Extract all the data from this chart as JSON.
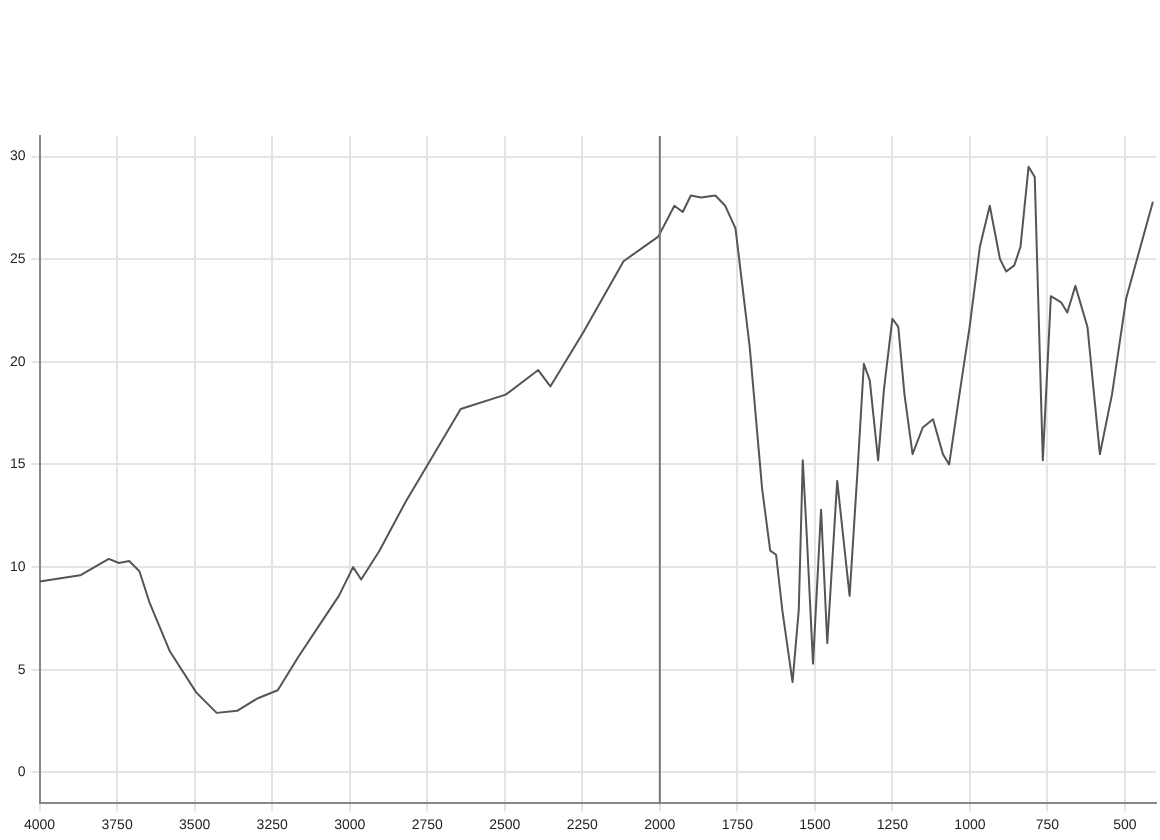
{
  "chart_data": {
    "type": "line",
    "color": "#555555",
    "marker": "none",
    "line_style": "solid",
    "grid": true,
    "legend": false,
    "x": [
      4000,
      3869,
      3777,
      3744,
      3711,
      3678,
      3646,
      3580,
      3495,
      3429,
      3363,
      3298,
      3232,
      3167,
      3101,
      3035,
      2989,
      2963,
      2904,
      2819,
      2642,
      2497,
      2392,
      2353,
      2248,
      2117,
      2005,
      1953,
      1926,
      1900,
      1867,
      1821,
      1789,
      1756,
      1710,
      1670,
      1644,
      1625,
      1605,
      1572,
      1552,
      1539,
      1526,
      1506,
      1480,
      1460,
      1428,
      1388,
      1362,
      1342,
      1323,
      1296,
      1277,
      1250,
      1231,
      1211,
      1185,
      1152,
      1119,
      1087,
      1067,
      1034,
      1001,
      968,
      936,
      903,
      883,
      857,
      837,
      811,
      791,
      765,
      739,
      706,
      686,
      660,
      621,
      581,
      542,
      496,
      410
    ],
    "values": [
      9.3,
      9.6,
      10.4,
      10.2,
      10.3,
      9.8,
      8.3,
      5.9,
      3.9,
      2.9,
      3.0,
      3.6,
      4.0,
      5.6,
      7.1,
      8.6,
      10.0,
      9.4,
      10.8,
      13.2,
      17.7,
      18.4,
      19.6,
      18.8,
      21.4,
      24.9,
      26.1,
      27.6,
      27.3,
      28.1,
      28.0,
      28.1,
      27.6,
      26.5,
      20.7,
      13.8,
      10.8,
      10.6,
      7.9,
      4.4,
      7.9,
      15.2,
      11.5,
      5.3,
      12.8,
      6.3,
      14.2,
      8.6,
      14.8,
      19.9,
      19.1,
      15.2,
      18.7,
      22.1,
      21.7,
      18.4,
      15.5,
      16.8,
      17.2,
      15.5,
      15.0,
      18.4,
      21.7,
      25.6,
      27.6,
      25.0,
      24.4,
      24.7,
      25.6,
      29.5,
      29.0,
      15.2,
      23.2,
      22.9,
      22.4,
      23.7,
      21.7,
      15.5,
      18.4,
      23.1,
      27.8
    ],
    "xlim": [
      4000,
      400
    ],
    "xticks": [
      4000,
      3750,
      3500,
      3250,
      3000,
      2750,
      2500,
      2250,
      2000,
      1750,
      1500,
      1250,
      1000,
      750,
      500
    ],
    "ylim": [
      -1.5,
      31
    ],
    "yticks": [
      0,
      5,
      10,
      15,
      20,
      25,
      30
    ],
    "ref_lines": [
      {
        "axis": "x",
        "value": 2000,
        "color": "#777777"
      }
    ]
  }
}
